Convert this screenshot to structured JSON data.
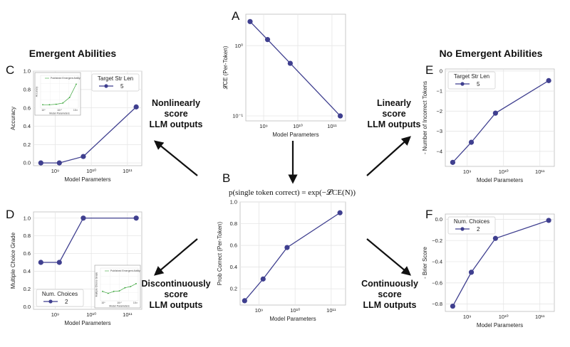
{
  "headings": {
    "left": "Emergent Abilities",
    "right": "No Emergent Abilities"
  },
  "arrows": {
    "top_left": [
      "Nonlinearly",
      "score",
      "LLM outputs"
    ],
    "top_right": [
      "Linearly",
      "score",
      "LLM outputs"
    ],
    "bottom_left": [
      "Discontinuously",
      "score",
      "LLM outputs"
    ],
    "bottom_right": [
      "Continuously",
      "score",
      "LLM outputs"
    ]
  },
  "formula": "p(single token correct) = exp(−𝓛CE(N))",
  "colors": {
    "series": "#3f3f8f",
    "grid": "#e6e6e6",
    "axis": "#bbbbbb",
    "inset_line": "#3aa53a"
  },
  "chart_data": [
    {
      "id": "A",
      "letter": "A",
      "type": "line",
      "xscale": "log",
      "xlim": [
        300000000.0,
        250000000000.0
      ],
      "yscale": "log",
      "ylim": [
        0.085,
        2.8
      ],
      "x": [
        400000000.0,
        1300000000.0,
        6000000000.0,
        175000000000.0
      ],
      "y": [
        2.2,
        1.22,
        0.56,
        0.1
      ],
      "xticks": [
        {
          "v": 1000000000.0,
          "label": "10⁹"
        },
        {
          "v": 10000000000.0,
          "label": "10¹⁰"
        },
        {
          "v": 100000000000.0,
          "label": "10¹¹"
        }
      ],
      "yticks": [
        {
          "v": 1.0,
          "label": "10⁰"
        },
        {
          "v": 0.1,
          "label": "10⁻¹"
        }
      ],
      "xlabel": "Model Parameters",
      "ylabel": "𝓛CE (Per-Token)",
      "legend": null
    },
    {
      "id": "B",
      "letter": "B",
      "type": "line",
      "xscale": "log",
      "xlim": [
        300000000.0,
        250000000000.0
      ],
      "yscale": "linear",
      "ylim": [
        0.05,
        1.0
      ],
      "x": [
        400000000.0,
        1300000000.0,
        6000000000.0,
        175000000000.0
      ],
      "y": [
        0.09,
        0.29,
        0.58,
        0.9
      ],
      "xticks": [
        {
          "v": 1000000000.0,
          "label": "10⁹"
        },
        {
          "v": 10000000000.0,
          "label": "10¹⁰"
        },
        {
          "v": 100000000000.0,
          "label": "10¹¹"
        }
      ],
      "yticks": [
        {
          "v": 0.2,
          "label": "0.2"
        },
        {
          "v": 0.4,
          "label": "0.4"
        },
        {
          "v": 0.6,
          "label": "0.6"
        },
        {
          "v": 0.8,
          "label": "0.8"
        },
        {
          "v": 1.0,
          "label": "1.0"
        }
      ],
      "xlabel": "Model Parameters",
      "ylabel": "Prob Correct (Per-Token)",
      "legend": null
    },
    {
      "id": "C",
      "letter": "C",
      "type": "line",
      "xscale": "log",
      "xlim": [
        250000000.0,
        250000000000.0
      ],
      "yscale": "linear",
      "ylim": [
        -0.03,
        1.0
      ],
      "x": [
        400000000.0,
        1300000000.0,
        6000000000.0,
        175000000000.0
      ],
      "y": [
        0.0,
        0.0,
        0.07,
        0.61
      ],
      "xticks": [
        {
          "v": 1000000000.0,
          "label": "10⁹"
        },
        {
          "v": 10000000000.0,
          "label": "10¹⁰"
        },
        {
          "v": 100000000000.0,
          "label": "10¹¹"
        }
      ],
      "yticks": [
        {
          "v": 0.0,
          "label": "0.0"
        },
        {
          "v": 0.2,
          "label": "0.2"
        },
        {
          "v": 0.4,
          "label": "0.4"
        },
        {
          "v": 0.6,
          "label": "0.6"
        },
        {
          "v": 0.8,
          "label": "0.8"
        },
        {
          "v": 1.0,
          "label": "1.0"
        }
      ],
      "xlabel": "Model Parameters",
      "ylabel": "Accuracy",
      "legend": {
        "title": "Target Str Len",
        "label": "5",
        "placement": "top-right"
      },
      "inset": {
        "placement": "top-left",
        "legend": "Published Emergent Ability",
        "x": [
          1,
          2,
          3,
          4,
          5,
          6
        ],
        "y": [
          0.05,
          0.05,
          0.07,
          0.12,
          0.35,
          0.9
        ],
        "ylabel": "Accuracy",
        "xlabel": "Model Parameters",
        "xticks": [
          "10⁸",
          "10¹⁰",
          "10¹²"
        ]
      }
    },
    {
      "id": "D",
      "letter": "D",
      "type": "line",
      "xscale": "log",
      "xlim": [
        250000000.0,
        250000000000.0
      ],
      "yscale": "linear",
      "ylim": [
        -0.03,
        1.07
      ],
      "x": [
        400000000.0,
        1300000000.0,
        6000000000.0,
        175000000000.0
      ],
      "y": [
        0.5,
        0.5,
        1.0,
        1.0
      ],
      "xticks": [
        {
          "v": 1000000000.0,
          "label": "10⁹"
        },
        {
          "v": 10000000000.0,
          "label": "10¹⁰"
        },
        {
          "v": 100000000000.0,
          "label": "10¹¹"
        }
      ],
      "yticks": [
        {
          "v": 0.0,
          "label": "0.0"
        },
        {
          "v": 0.2,
          "label": "0.2"
        },
        {
          "v": 0.4,
          "label": "0.4"
        },
        {
          "v": 0.6,
          "label": "0.6"
        },
        {
          "v": 0.8,
          "label": "0.8"
        },
        {
          "v": 1.0,
          "label": "1.0"
        }
      ],
      "xlabel": "Model Parameters",
      "ylabel": "Multiple Choice Grade",
      "legend": {
        "title": "Num. Choices",
        "label": "2",
        "placement": "bottom-left"
      },
      "inset": {
        "placement": "bottom-right",
        "legend": "Published Emergent Ability",
        "x": [
          1,
          2,
          3,
          4,
          5,
          6,
          7
        ],
        "y": [
          0.3,
          0.22,
          0.3,
          0.32,
          0.45,
          0.5,
          0.62
        ],
        "ylabel": "Multiple Choice Grade",
        "xlabel": "Model Parameters",
        "xticks": [
          "10⁸",
          "10¹⁰",
          "10¹²"
        ]
      }
    },
    {
      "id": "E",
      "letter": "E",
      "type": "line",
      "xscale": "log",
      "xlim": [
        250000000.0,
        250000000000.0
      ],
      "yscale": "linear",
      "ylim": [
        -4.75,
        0.1
      ],
      "x": [
        400000000.0,
        1300000000.0,
        6000000000.0,
        175000000000.0
      ],
      "y": [
        -4.55,
        -3.55,
        -2.1,
        -0.48
      ],
      "xticks": [
        {
          "v": 1000000000.0,
          "label": "10⁹"
        },
        {
          "v": 10000000000.0,
          "label": "10¹⁰"
        },
        {
          "v": 100000000000.0,
          "label": "10¹¹"
        }
      ],
      "yticks": [
        {
          "v": 0,
          "label": "0"
        },
        {
          "v": -1,
          "label": "−1"
        },
        {
          "v": -2,
          "label": "−2"
        },
        {
          "v": -3,
          "label": "−3"
        },
        {
          "v": -4,
          "label": "−4"
        }
      ],
      "xlabel": "Model Parameters",
      "ylabel": "- Number of Incorrect Tokens",
      "legend": {
        "title": "Target Str Len",
        "label": "5",
        "placement": "top-left"
      }
    },
    {
      "id": "F",
      "letter": "F",
      "type": "line",
      "xscale": "log",
      "xlim": [
        250000000.0,
        250000000000.0
      ],
      "yscale": "linear",
      "ylim": [
        -0.87,
        0.05
      ],
      "x": [
        400000000.0,
        1300000000.0,
        6000000000.0,
        175000000000.0
      ],
      "y": [
        -0.82,
        -0.5,
        -0.18,
        -0.01
      ],
      "xticks": [
        {
          "v": 1000000000.0,
          "label": "10⁹"
        },
        {
          "v": 10000000000.0,
          "label": "10¹⁰"
        },
        {
          "v": 100000000000.0,
          "label": "10¹¹"
        }
      ],
      "yticks": [
        {
          "v": 0.0,
          "label": "0.0"
        },
        {
          "v": -0.2,
          "label": "−0.2"
        },
        {
          "v": -0.4,
          "label": "−0.4"
        },
        {
          "v": -0.6,
          "label": "−0.6"
        },
        {
          "v": -0.8,
          "label": "−0.8"
        }
      ],
      "xlabel": "Model Parameters",
      "ylabel": "- Brier Score",
      "legend": {
        "title": "Num. Choices",
        "label": "2",
        "placement": "top-left"
      }
    }
  ]
}
